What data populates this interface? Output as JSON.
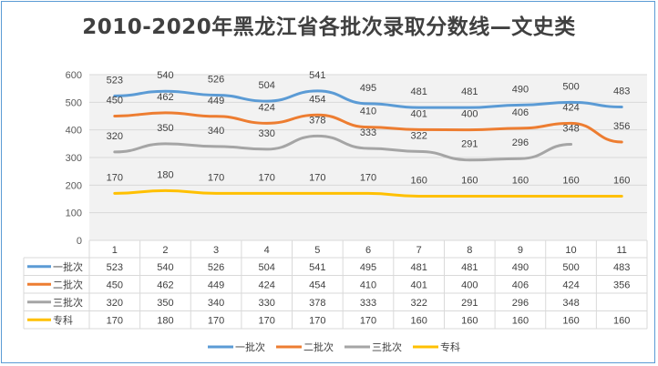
{
  "chart_data": {
    "type": "line",
    "title": "2010-2020年黑龙江省各批次录取分数线—文史类",
    "categories": [
      "1",
      "2",
      "3",
      "4",
      "5",
      "6",
      "7",
      "8",
      "9",
      "10",
      "11"
    ],
    "ylim": [
      0,
      600
    ],
    "yticks": [
      "0",
      "100",
      "200",
      "300",
      "400",
      "500",
      "600"
    ],
    "grid": true,
    "plot_background": "#f2f2f2",
    "legend_position": "bottom",
    "data_table": true,
    "series": [
      {
        "name": "一批次",
        "color": "#5b9bd5",
        "values": [
          523,
          540,
          526,
          504,
          541,
          495,
          481,
          481,
          490,
          500,
          483
        ]
      },
      {
        "name": "二批次",
        "color": "#ed7d31",
        "values": [
          450,
          462,
          449,
          424,
          454,
          410,
          401,
          400,
          406,
          424,
          356
        ]
      },
      {
        "name": "三批次",
        "color": "#a5a5a5",
        "values": [
          320,
          350,
          340,
          330,
          378,
          333,
          322,
          291,
          296,
          348,
          null
        ]
      },
      {
        "name": "专科",
        "color": "#ffc000",
        "values": [
          170,
          180,
          170,
          170,
          170,
          170,
          160,
          160,
          160,
          160,
          160
        ]
      }
    ]
  }
}
